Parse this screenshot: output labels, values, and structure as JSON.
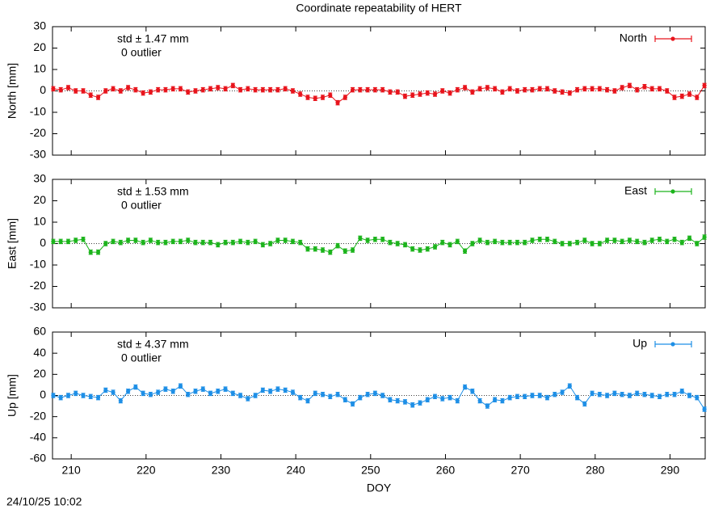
{
  "title": "Coordinate repeatability of HERT",
  "timestamp": "24/10/25 10:02",
  "chart_data": [
    {
      "type": "line",
      "y_label": "North [mm]",
      "std_label": "std ± 1.47 mm",
      "outlier_label": "0 outlier",
      "error": 1,
      "xlim": [
        207.5,
        294.7
      ],
      "xticks": [
        210,
        220,
        230,
        240,
        250,
        260,
        270,
        280,
        290
      ],
      "ylim": [
        -30,
        30
      ],
      "yticks": [
        -30,
        -20,
        -10,
        0,
        10,
        20,
        30
      ],
      "x": [
        207.6,
        208.6,
        209.6,
        210.6,
        211.6,
        212.6,
        213.6,
        214.6,
        215.6,
        216.6,
        217.6,
        218.6,
        219.6,
        220.6,
        221.6,
        222.6,
        223.6,
        224.6,
        225.6,
        226.6,
        227.6,
        228.6,
        229.6,
        230.6,
        231.6,
        232.6,
        233.6,
        234.6,
        235.6,
        236.6,
        237.6,
        238.6,
        239.6,
        240.6,
        241.6,
        242.6,
        243.6,
        244.6,
        245.6,
        246.6,
        247.6,
        248.6,
        249.6,
        250.6,
        251.6,
        252.6,
        253.6,
        254.6,
        255.6,
        256.6,
        257.6,
        258.6,
        259.6,
        260.6,
        261.6,
        262.6,
        263.6,
        264.6,
        265.6,
        266.6,
        267.6,
        268.6,
        269.6,
        270.6,
        271.6,
        272.6,
        273.6,
        274.6,
        275.6,
        276.6,
        277.6,
        278.6,
        279.6,
        280.6,
        281.6,
        282.6,
        283.6,
        284.6,
        285.6,
        286.6,
        287.6,
        288.6,
        289.6,
        290.6,
        291.6,
        292.6,
        293.6,
        294.6
      ],
      "series": [
        {
          "name": "North",
          "color": "#e8141c",
          "values": [
            1,
            0.5,
            1.5,
            0,
            0,
            -2,
            -3,
            0,
            1,
            0,
            1.5,
            0.5,
            -1,
            -0.5,
            0.5,
            0.5,
            1,
            1,
            -0.5,
            0,
            0.5,
            1,
            1.5,
            1,
            2.5,
            0.5,
            1,
            0.5,
            0.5,
            0.5,
            0.5,
            1,
            0,
            -1.5,
            -3,
            -3.5,
            -3,
            -2,
            -5.5,
            -3,
            0.5,
            0.5,
            0.5,
            0.5,
            0.5,
            -0.5,
            -0.5,
            -2.5,
            -2,
            -1.5,
            -1,
            -1.5,
            0,
            -1,
            0.5,
            1.5,
            -0.5,
            1,
            1.5,
            1,
            -0.5,
            1,
            0,
            0.5,
            0.5,
            1,
            1,
            0,
            -0.5,
            -1,
            0.5,
            1,
            1,
            1,
            0.5,
            0,
            1.5,
            2.5,
            0.5,
            2,
            1,
            1,
            0,
            -3,
            -2.5,
            -1.5,
            -3,
            2.5
          ]
        }
      ]
    },
    {
      "type": "line",
      "y_label": "East [mm]",
      "std_label": "std ± 1.53 mm",
      "outlier_label": "0 outlier",
      "error": 1,
      "xlim": [
        207.5,
        294.7
      ],
      "xticks": [
        210,
        220,
        230,
        240,
        250,
        260,
        270,
        280,
        290
      ],
      "ylim": [
        -30,
        30
      ],
      "yticks": [
        -30,
        -20,
        -10,
        0,
        10,
        20,
        30
      ],
      "x": [
        207.6,
        208.6,
        209.6,
        210.6,
        211.6,
        212.6,
        213.6,
        214.6,
        215.6,
        216.6,
        217.6,
        218.6,
        219.6,
        220.6,
        221.6,
        222.6,
        223.6,
        224.6,
        225.6,
        226.6,
        227.6,
        228.6,
        229.6,
        230.6,
        231.6,
        232.6,
        233.6,
        234.6,
        235.6,
        236.6,
        237.6,
        238.6,
        239.6,
        240.6,
        241.6,
        242.6,
        243.6,
        244.6,
        245.6,
        246.6,
        247.6,
        248.6,
        249.6,
        250.6,
        251.6,
        252.6,
        253.6,
        254.6,
        255.6,
        256.6,
        257.6,
        258.6,
        259.6,
        260.6,
        261.6,
        262.6,
        263.6,
        264.6,
        265.6,
        266.6,
        267.6,
        268.6,
        269.6,
        270.6,
        271.6,
        272.6,
        273.6,
        274.6,
        275.6,
        276.6,
        277.6,
        278.6,
        279.6,
        280.6,
        281.6,
        282.6,
        283.6,
        284.6,
        285.6,
        286.6,
        287.6,
        288.6,
        289.6,
        290.6,
        291.6,
        292.6,
        293.6,
        294.6
      ],
      "series": [
        {
          "name": "East",
          "color": "#1cb41c",
          "values": [
            1,
            1,
            1,
            1.5,
            2,
            -4,
            -4,
            0,
            1,
            0.5,
            1.5,
            1.5,
            0.5,
            1.5,
            0.5,
            0.5,
            1,
            1,
            1.5,
            0.5,
            0.5,
            0.5,
            -0.5,
            0.5,
            0.5,
            1,
            0.5,
            1,
            -0.5,
            0,
            1.5,
            1.5,
            1,
            0.5,
            -2.5,
            -2.5,
            -3,
            -4,
            -1,
            -3.5,
            -3,
            2.5,
            1.5,
            2,
            2,
            0.5,
            0,
            -0.5,
            -2.5,
            -3,
            -2.5,
            -1.5,
            0.5,
            -0.5,
            1,
            -3.5,
            0,
            1.5,
            0.5,
            1,
            0.5,
            0.5,
            0.5,
            0.5,
            1.5,
            2,
            2,
            1,
            0,
            0,
            0.5,
            1.5,
            0,
            0,
            1.5,
            1.5,
            1,
            1.5,
            1,
            0.5,
            1.5,
            2,
            1,
            2,
            0.5,
            2.5,
            0,
            3
          ]
        }
      ]
    },
    {
      "type": "line",
      "y_label": "Up [mm]",
      "x_label": "DOY",
      "std_label": "std ± 4.37 mm",
      "outlier_label": "0 outlier",
      "error": 2,
      "xlim": [
        207.5,
        294.7
      ],
      "xticks": [
        210,
        220,
        230,
        240,
        250,
        260,
        270,
        280,
        290
      ],
      "ylim": [
        -60,
        60
      ],
      "yticks": [
        -60,
        -40,
        -20,
        0,
        20,
        40,
        60
      ],
      "x": [
        207.6,
        208.6,
        209.6,
        210.6,
        211.6,
        212.6,
        213.6,
        214.6,
        215.6,
        216.6,
        217.6,
        218.6,
        219.6,
        220.6,
        221.6,
        222.6,
        223.6,
        224.6,
        225.6,
        226.6,
        227.6,
        228.6,
        229.6,
        230.6,
        231.6,
        232.6,
        233.6,
        234.6,
        235.6,
        236.6,
        237.6,
        238.6,
        239.6,
        240.6,
        241.6,
        242.6,
        243.6,
        244.6,
        245.6,
        246.6,
        247.6,
        248.6,
        249.6,
        250.6,
        251.6,
        252.6,
        253.6,
        254.6,
        255.6,
        256.6,
        257.6,
        258.6,
        259.6,
        260.6,
        261.6,
        262.6,
        263.6,
        264.6,
        265.6,
        266.6,
        267.6,
        268.6,
        269.6,
        270.6,
        271.6,
        272.6,
        273.6,
        274.6,
        275.6,
        276.6,
        277.6,
        278.6,
        279.6,
        280.6,
        281.6,
        282.6,
        283.6,
        284.6,
        285.6,
        286.6,
        287.6,
        288.6,
        289.6,
        290.6,
        291.6,
        292.6,
        293.6,
        294.6
      ],
      "series": [
        {
          "name": "Up",
          "color": "#1e8fe6",
          "values": [
            0,
            -2,
            0,
            2,
            0,
            -1,
            -2,
            5,
            3,
            -5,
            4,
            8,
            2,
            1,
            3,
            6,
            4,
            9,
            1,
            4,
            6,
            2,
            4,
            6,
            2,
            0,
            -3,
            0,
            5,
            4,
            6,
            5,
            3,
            -2,
            -5,
            2,
            1,
            -1,
            1,
            -4,
            -8,
            -2,
            1,
            2,
            0,
            -4,
            -5,
            -6,
            -9,
            -7,
            -4,
            -1,
            -3,
            -2,
            -5,
            8,
            4,
            -5,
            -10,
            -4,
            -5,
            -2,
            -1,
            -1,
            0,
            0,
            -2,
            1,
            3,
            9,
            -2,
            -8,
            2,
            1,
            0,
            2,
            1,
            0,
            2,
            1,
            0,
            -1,
            1,
            1,
            4,
            0,
            -2,
            -13
          ]
        }
      ]
    }
  ]
}
